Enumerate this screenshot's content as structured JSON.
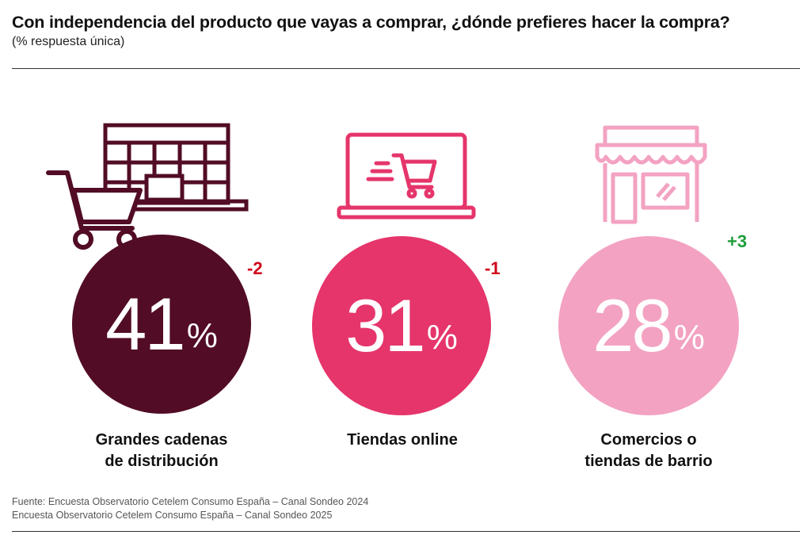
{
  "header": {
    "title": "Con independencia del producto que vayas a comprar, ¿dónde prefieres hacer la compra?",
    "subtitle": "(% respuesta única)"
  },
  "chart_data": {
    "type": "bubble",
    "unit": "%",
    "items": [
      {
        "label_line1": "Grandes cadenas",
        "label_line2": "de distribución",
        "value": 41,
        "delta": "-2",
        "color": "#520C25",
        "delta_color": "#D0021B",
        "icon": "shopping-cart-store-icon"
      },
      {
        "label_line1": "Tiendas online",
        "label_line2": "",
        "value": 31,
        "delta": "-1",
        "color": "#E5356B",
        "delta_color": "#D0021B",
        "icon": "laptop-cart-icon"
      },
      {
        "label_line1": "Comercios o",
        "label_line2": "tiendas de barrio",
        "value": 28,
        "delta": "+3",
        "color": "#F3A2C2",
        "delta_color": "#1E9E3A",
        "icon": "local-shop-icon"
      }
    ]
  },
  "footer": {
    "source_line1": "Fuente: Encuesta Observatorio Cetelem Consumo España – Canal Sondeo 2024",
    "source_line2": "Encuesta Observatorio Cetelem Consumo España – Canal Sondeo 2025"
  }
}
